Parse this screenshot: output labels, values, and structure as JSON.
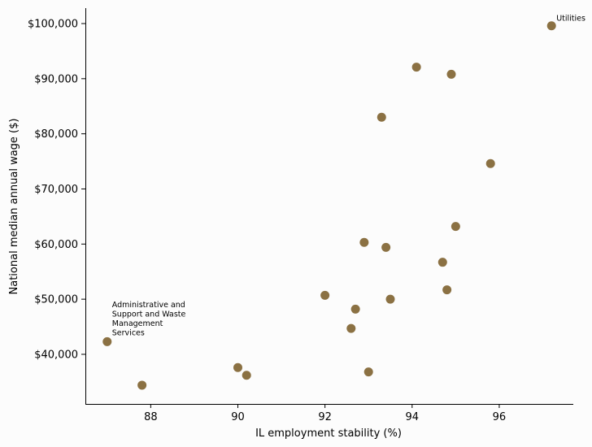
{
  "chart_data": {
    "type": "scatter",
    "title": "",
    "xlabel": "IL employment stability (%)",
    "ylabel": "National median annual wage ($)",
    "xlim": [
      86.5,
      97.7
    ],
    "ylim": [
      31000,
      102800
    ],
    "xticks": [
      88,
      90,
      92,
      94,
      96
    ],
    "xtick_labels": [
      "88",
      "90",
      "92",
      "94",
      "96"
    ],
    "yticks": [
      40000,
      50000,
      60000,
      70000,
      80000,
      90000,
      100000
    ],
    "ytick_labels": [
      "$40,000",
      "$50,000",
      "$60,000",
      "$70,000",
      "$80,000",
      "$90,000",
      "$100,000"
    ],
    "grid": false,
    "marker_color": "#8b7143",
    "points": [
      {
        "x": 87.0,
        "y": 42300
      },
      {
        "x": 87.8,
        "y": 34400
      },
      {
        "x": 90.0,
        "y": 37600
      },
      {
        "x": 90.2,
        "y": 36200
      },
      {
        "x": 92.0,
        "y": 50700
      },
      {
        "x": 92.6,
        "y": 44700
      },
      {
        "x": 92.7,
        "y": 48200
      },
      {
        "x": 92.9,
        "y": 60300
      },
      {
        "x": 93.0,
        "y": 36800
      },
      {
        "x": 93.3,
        "y": 83000
      },
      {
        "x": 93.4,
        "y": 59400
      },
      {
        "x": 93.5,
        "y": 50000
      },
      {
        "x": 94.1,
        "y": 92100
      },
      {
        "x": 94.7,
        "y": 56700
      },
      {
        "x": 94.8,
        "y": 51700
      },
      {
        "x": 94.9,
        "y": 90800
      },
      {
        "x": 95.0,
        "y": 63200
      },
      {
        "x": 95.8,
        "y": 74600
      },
      {
        "x": 97.2,
        "y": 99600
      }
    ],
    "annotations": [
      {
        "text": "Utilities",
        "x": 97.2,
        "y": 99600,
        "lines": [
          "Utilities"
        ]
      },
      {
        "text": "Administrative and Support and Waste Management Services",
        "x": 87.0,
        "y": 42300,
        "lines": [
          "Administrative and",
          "Support and Waste",
          "Management",
          "Services"
        ]
      }
    ]
  }
}
